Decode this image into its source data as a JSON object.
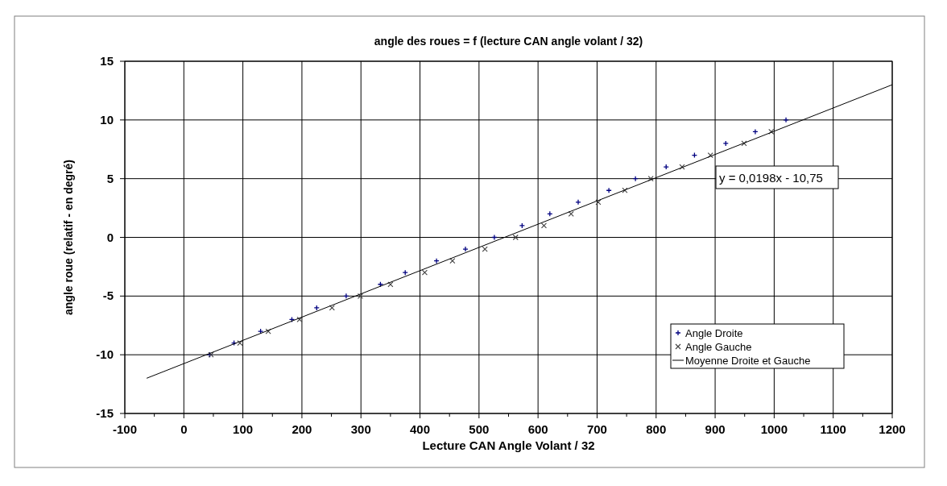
{
  "chart_data": {
    "type": "scatter",
    "title": "angle des roues = f (lecture CAN angle volant / 32)",
    "xlabel": "Lecture CAN Angle Volant / 32",
    "ylabel": "angle roue (relatif - en degré)",
    "xlim": [
      -100,
      1200
    ],
    "xticks": [
      -100,
      0,
      100,
      200,
      300,
      400,
      500,
      600,
      700,
      800,
      900,
      1000,
      1100,
      1200
    ],
    "ylim": [
      -15,
      15
    ],
    "yticks": [
      -15,
      -10,
      -5,
      0,
      5,
      10,
      15
    ],
    "grid": true,
    "legend": "bottom right",
    "annotations": [
      "y = 0,0198x - 10,75"
    ],
    "series": [
      {
        "name": "Angle Droite",
        "type": "scatter",
        "marker": "plus",
        "color": "#000080",
        "x": [
          44,
          85,
          130,
          183,
          225,
          275,
          333,
          375,
          428,
          477,
          526,
          573,
          620,
          668,
          720,
          765,
          817,
          865,
          918,
          968,
          1020
        ],
        "values": [
          -10,
          -9,
          -8,
          -7,
          -6,
          -5,
          -4,
          -3,
          -2,
          -1,
          0,
          1,
          2,
          3,
          4,
          5,
          6,
          7,
          8,
          9,
          10
        ]
      },
      {
        "name": "Angle Gauche",
        "type": "scatter",
        "marker": "cross",
        "color": "#404040",
        "x": [
          46,
          95,
          143,
          196,
          251,
          299,
          350,
          408,
          455,
          510,
          562,
          610,
          656,
          702,
          747,
          791,
          844,
          892,
          949,
          995
        ],
        "values": [
          -10,
          -9,
          -8,
          -7,
          -6,
          -5,
          -4,
          -3,
          -2,
          -1,
          0,
          1,
          2,
          3,
          4,
          5,
          6,
          7,
          8,
          9
        ]
      },
      {
        "name": "Moyenne Droite et Gauche",
        "type": "line",
        "marker": "none",
        "color": "#000000",
        "x": [
          -63,
          1200
        ],
        "values": [
          -12.0,
          13.0
        ]
      }
    ]
  }
}
